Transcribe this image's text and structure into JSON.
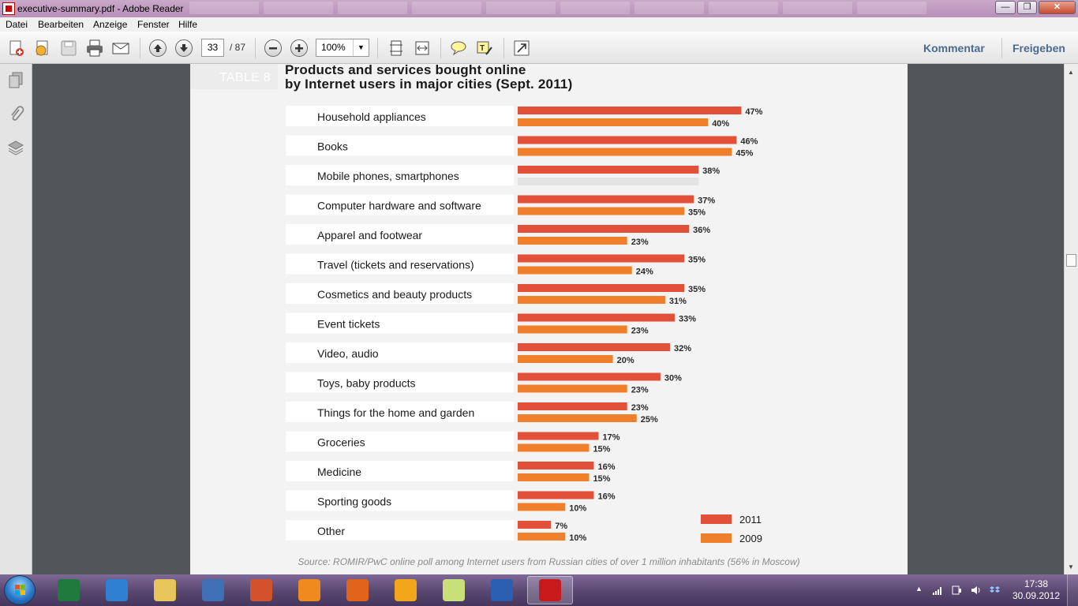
{
  "window": {
    "title": "executive-summary.pdf - Adobe Reader",
    "min_label": "—",
    "max_label": "❐",
    "close_label": "✕"
  },
  "menu": [
    "Datei",
    "Bearbeiten",
    "Anzeige",
    "Fenster",
    "Hilfe"
  ],
  "toolbar": {
    "current_page": "33",
    "page_total": "/ 87",
    "zoom": "100%",
    "comment_label": "Kommentar",
    "share_label": "Freigeben"
  },
  "document": {
    "table_tag": "TABLE 8",
    "title_line1": "Products and services bought online",
    "title_line2": "by Internet users in major cities (Sept. 2011)",
    "source": "Source: ROMIR/PwC online poll among Internet users from Russian cities of over 1 million inhabitants (56% in Moscow)"
  },
  "chart_data": {
    "type": "bar",
    "orientation": "horizontal",
    "title": "Products and services bought online by Internet users in major cities (Sept. 2011)",
    "categories": [
      "Household appliances",
      "Books",
      "Mobile phones, smartphones",
      "Computer hardware and software",
      "Apparel and footwear",
      "Travel (tickets and reservations)",
      "Cosmetics and beauty products",
      "Event tickets",
      "Video, audio",
      "Toys, baby products",
      "Things for the home and garden",
      "Groceries",
      "Medicine",
      "Sporting goods",
      "Other"
    ],
    "series": [
      {
        "name": "2011",
        "color": "#e2503a",
        "values": [
          47,
          46,
          38,
          37,
          36,
          35,
          35,
          33,
          32,
          30,
          23,
          17,
          16,
          16,
          7
        ]
      },
      {
        "name": "2009",
        "color": "#f07f2b",
        "values": [
          40,
          45,
          null,
          35,
          23,
          24,
          31,
          23,
          20,
          23,
          25,
          15,
          15,
          10,
          10
        ]
      }
    ],
    "missing_bar_color": "#e3e3e3",
    "value_suffix": "%",
    "xlim": [
      0,
      50
    ],
    "legend": "bottom-right",
    "grid": false
  },
  "taskbar": {
    "apps": [
      {
        "name": "excel",
        "color": "#1f7a3d"
      },
      {
        "name": "internet-explorer",
        "color": "#2f7fd3"
      },
      {
        "name": "file-explorer",
        "color": "#e8c55a"
      },
      {
        "name": "paint",
        "color": "#3f6fb5"
      },
      {
        "name": "powerpoint",
        "color": "#d2522b"
      },
      {
        "name": "media-player",
        "color": "#f08a1f"
      },
      {
        "name": "firefox",
        "color": "#e2641c"
      },
      {
        "name": "outlook",
        "color": "#f2a619"
      },
      {
        "name": "sticky-notes",
        "color": "#c8e07a"
      },
      {
        "name": "word",
        "color": "#2b5fb2"
      },
      {
        "name": "adobe-reader",
        "color": "#c81a1a"
      }
    ],
    "time": "17:38",
    "date": "30.09.2012"
  }
}
